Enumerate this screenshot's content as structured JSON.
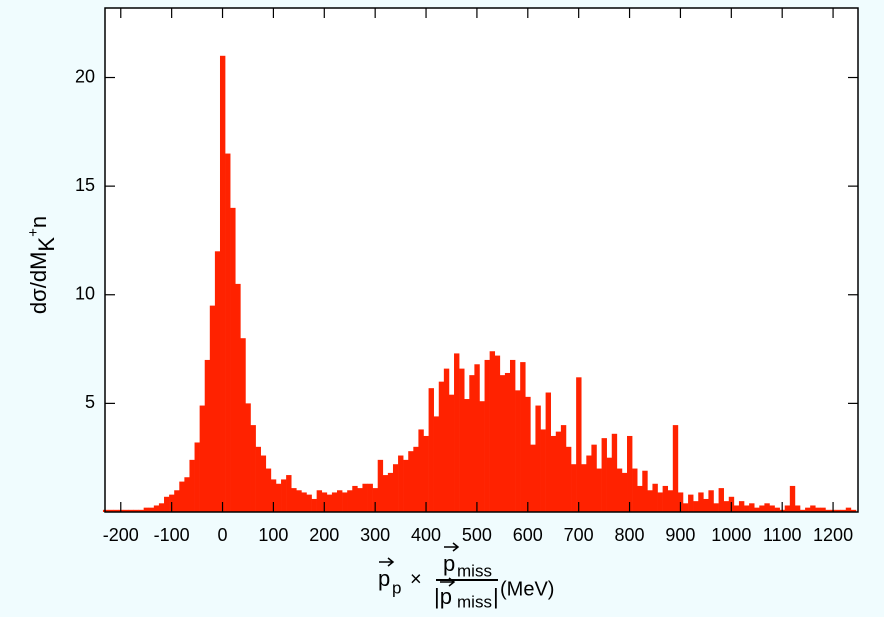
{
  "chart_data": {
    "type": "histogram",
    "xlabel": {
      "p1": "p",
      "p1_sub": "p",
      "times": "×",
      "num": "p",
      "num_sub": "miss",
      "den": "|p",
      "den_sub": "miss",
      "den_end": "|",
      "unit": "(MeV)"
    },
    "ylabel": {
      "main": "dσ/dM",
      "sub": "K",
      "sup": "+",
      "tail": "n"
    },
    "color": "#ff2200",
    "xlim": [
      -231,
      1249
    ],
    "ylim": [
      0,
      23.2
    ],
    "xticks": [
      -200,
      -100,
      0,
      100,
      200,
      300,
      400,
      500,
      600,
      700,
      800,
      900,
      1000,
      1100,
      1200
    ],
    "yticks": [
      5,
      10,
      15,
      20
    ],
    "bins": [
      -235,
      -225,
      -215,
      -205,
      -195,
      -185,
      -175,
      -165,
      -155,
      -145,
      -135,
      -125,
      -115,
      -105,
      -95,
      -85,
      -75,
      -65,
      -55,
      -45,
      -35,
      -25,
      -15,
      -5,
      5,
      15,
      25,
      35,
      45,
      55,
      65,
      75,
      85,
      95,
      105,
      115,
      125,
      135,
      145,
      155,
      165,
      175,
      185,
      195,
      205,
      215,
      225,
      235,
      245,
      255,
      265,
      275,
      285,
      295,
      305,
      315,
      325,
      335,
      345,
      355,
      365,
      375,
      385,
      395,
      405,
      415,
      425,
      435,
      445,
      455,
      465,
      475,
      485,
      495,
      505,
      515,
      525,
      535,
      545,
      555,
      565,
      575,
      585,
      595,
      605,
      615,
      625,
      635,
      645,
      655,
      665,
      675,
      685,
      695,
      705,
      715,
      725,
      735,
      745,
      755,
      765,
      775,
      785,
      795,
      805,
      815,
      825,
      835,
      845,
      855,
      865,
      875,
      885,
      895,
      905,
      915,
      925,
      935,
      945,
      955,
      965,
      975,
      985,
      995,
      1005,
      1015,
      1025,
      1035,
      1045,
      1055,
      1065,
      1075,
      1085,
      1095,
      1105,
      1115,
      1125,
      1135,
      1145,
      1155,
      1165,
      1175,
      1185,
      1195,
      1205,
      1215,
      1225,
      1235,
      1245
    ],
    "counts": [
      0.1,
      0.1,
      0.1,
      0.1,
      0.1,
      0.1,
      0.1,
      0.1,
      0.2,
      0.2,
      0.3,
      0.4,
      0.7,
      0.8,
      1.0,
      1.4,
      1.6,
      2.4,
      3.2,
      4.9,
      7.0,
      9.5,
      12.0,
      21.0,
      16.5,
      14.0,
      10.5,
      8.0,
      5.0,
      4.0,
      3.0,
      2.6,
      2.0,
      1.5,
      1.3,
      1.5,
      1.7,
      1.1,
      1.0,
      0.9,
      0.8,
      0.6,
      1.0,
      0.9,
      0.8,
      0.9,
      1.0,
      0.9,
      1.0,
      1.2,
      1.1,
      1.3,
      1.3,
      1.1,
      2.4,
      1.7,
      1.8,
      2.2,
      2.6,
      2.4,
      2.8,
      3.0,
      3.8,
      3.5,
      5.7,
      4.4,
      6.0,
      6.6,
      5.4,
      7.3,
      6.6,
      5.2,
      6.3,
      6.8,
      5.1,
      7.0,
      7.4,
      7.2,
      6.3,
      6.4,
      7.0,
      5.6,
      6.9,
      5.3,
      3.1,
      4.9,
      3.8,
      5.5,
      3.5,
      3.7,
      4.0,
      3.0,
      2.2,
      6.2,
      2.2,
      2.6,
      3.1,
      2.0,
      3.4,
      2.5,
      3.6,
      2.0,
      1.8,
      3.5,
      2.0,
      1.2,
      1.9,
      1.0,
      1.3,
      0.9,
      1.2,
      1.0,
      4.0,
      0.9,
      0.4,
      0.8,
      0.5,
      0.9,
      0.6,
      1.0,
      0.4,
      1.1,
      0.5,
      0.7,
      0.3,
      0.5,
      0.3,
      0.4,
      0.2,
      0.3,
      0.4,
      0.3,
      0.2,
      0.1,
      0.3,
      1.2,
      0.3,
      0.1,
      0.2,
      0.3,
      0.2,
      0.2,
      0.1,
      0.1,
      0.1,
      0.1,
      0.2,
      0.1
    ]
  }
}
